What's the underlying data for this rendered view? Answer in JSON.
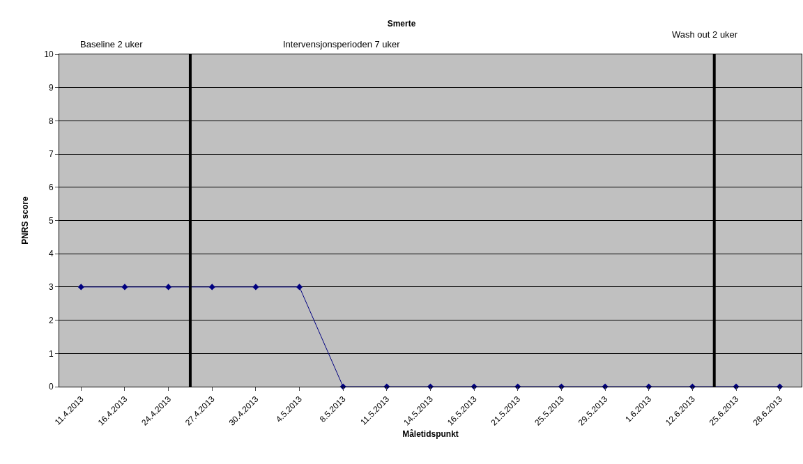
{
  "chart_data": {
    "type": "line",
    "title": "Smerte",
    "xlabel": "Måletidspunkt",
    "ylabel": "PNRS score",
    "categories": [
      "11.4.2013",
      "16.4.2013",
      "24.4.2013",
      "27.4.2013",
      "30.4.2013",
      "4.5.2013",
      "8.5.2013",
      "11.5.2013",
      "14.5.2013",
      "16.5.2013",
      "21.5.2013",
      "25.5.2013",
      "29.5.2013",
      "1.6.2013",
      "12.6.2013",
      "25.6.2013",
      "28.6.2013"
    ],
    "series": [
      {
        "color": "#000080",
        "values": [
          3,
          3,
          3,
          3,
          3,
          3,
          0,
          0,
          0,
          0,
          0,
          0,
          0,
          0,
          0,
          0,
          0
        ]
      }
    ],
    "ylim": [
      0,
      10
    ],
    "yticks": [
      0,
      1,
      2,
      3,
      4,
      5,
      6,
      7,
      8,
      9,
      10
    ],
    "grid": "y",
    "marker": "diamond",
    "line_style": "solid",
    "annotations": [
      "Baseline 2 uker",
      "Intervensjonsperioden 7 uker",
      "Wash out 2 uker"
    ]
  }
}
